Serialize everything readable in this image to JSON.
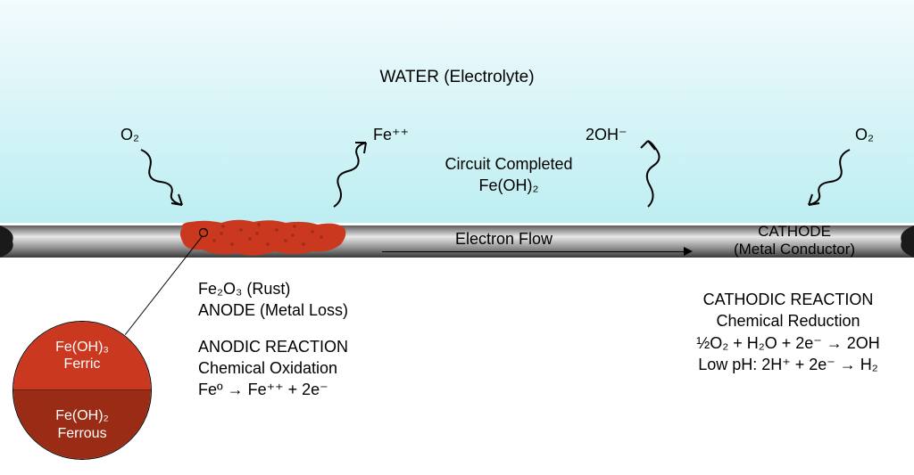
{
  "water": {
    "label": "WATER (Electrolyte)",
    "gradient_top": "#f2fbfd",
    "gradient_bottom": "#bdeef2"
  },
  "pipe": {
    "gradient_stops": [
      "#5c5c5c",
      "#e8e8e8",
      "#909090",
      "#3a3a3a"
    ],
    "end_cap_color": "#1a1a1a"
  },
  "rust": {
    "fill": "#c9381f",
    "speckle": "#a12c17"
  },
  "detail_circle": {
    "top_label_1": "Fe(OH)₃",
    "top_label_2": "Ferric",
    "bot_label_1": "Fe(OH)₂",
    "bot_label_2": "Ferrous",
    "top_color": "#c9381f",
    "bot_color": "#9a2c15",
    "divider": "#6d1e0e"
  },
  "species": {
    "o2_left": "O₂",
    "fe_ion": "Fe⁺⁺",
    "hydroxide": "2OH⁻",
    "o2_right": "O₂",
    "circuit_1": "Circuit Completed",
    "circuit_2": "Fe(OH)₂"
  },
  "electron_flow": "Electron Flow",
  "cathode_label_1": "CATHODE",
  "cathode_label_2": "(Metal Conductor)",
  "anode": {
    "line1": "Fe₂O₃ (Rust)",
    "line2": "ANODE (Metal Loss)",
    "heading": "ANODIC REACTION",
    "sub": "Chemical Oxidation",
    "eq": "Feº → Fe⁺⁺ + 2e⁻"
  },
  "cathode": {
    "heading": "CATHODIC REACTION",
    "sub": "Chemical Reduction",
    "eq1": "½O₂ + H₂O + 2e⁻ → 2OH",
    "eq2": "Low pH: 2H⁺ + 2e⁻ → H₂"
  },
  "squiggle_stroke": "#000000"
}
